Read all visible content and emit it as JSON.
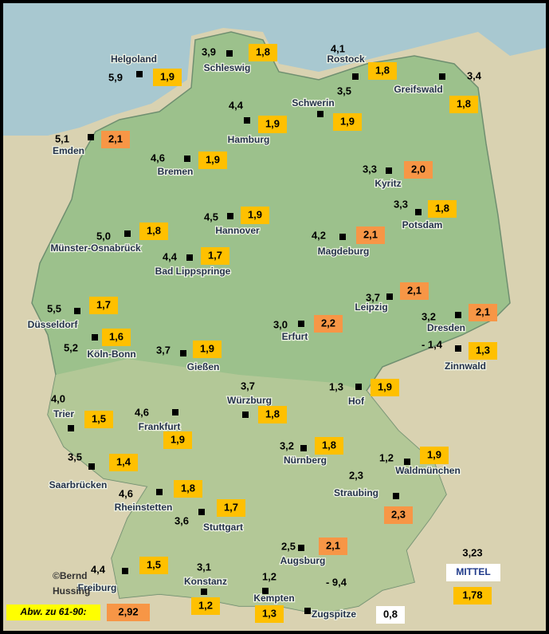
{
  "stations": [
    {
      "name": "Helgoland",
      "temp": "5,9",
      "deviation": "1,9",
      "color": "#ffc000"
    },
    {
      "name": "Schleswig",
      "temp": "3,9",
      "deviation": "1,8",
      "color": "#ffc000"
    },
    {
      "name": "Rostock",
      "temp": "4,1",
      "deviation": "1,8",
      "color": "#ffc000"
    },
    {
      "name": "Greifswald",
      "temp": "3,4",
      "deviation": "1,8",
      "color": "#ffc000"
    },
    {
      "name": "Schwerin",
      "temp": "3,5",
      "deviation": "1,9",
      "color": "#ffc000"
    },
    {
      "name": "Hamburg",
      "temp": "4,4",
      "deviation": "1,9",
      "color": "#ffc000"
    },
    {
      "name": "Emden",
      "temp": "5,1",
      "deviation": "2,1",
      "color": "#f79646"
    },
    {
      "name": "Bremen",
      "temp": "4,6",
      "deviation": "1,9",
      "color": "#ffc000"
    },
    {
      "name": "Kyritz",
      "temp": "3,3",
      "deviation": "2,0",
      "color": "#f79646"
    },
    {
      "name": "Potsdam",
      "temp": "3,3",
      "deviation": "1,8",
      "color": "#ffc000"
    },
    {
      "name": "Hannover",
      "temp": "4,5",
      "deviation": "1,9",
      "color": "#ffc000"
    },
    {
      "name": "Münster-Osnabrück",
      "temp": "5,0",
      "deviation": "1,8",
      "color": "#ffc000"
    },
    {
      "name": "Magdeburg",
      "temp": "4,2",
      "deviation": "2,1",
      "color": "#f79646"
    },
    {
      "name": "Bad Lippspringe",
      "temp": "4,4",
      "deviation": "1,7",
      "color": "#ffc000"
    },
    {
      "name": "Leipzig",
      "temp": "3,7",
      "deviation": "2,1",
      "color": "#f79646"
    },
    {
      "name": "Düsseldorf",
      "temp": "5,5",
      "deviation": "1,7",
      "color": "#ffc000"
    },
    {
      "name": "Dresden",
      "temp": "3,2",
      "deviation": "2,1",
      "color": "#f79646"
    },
    {
      "name": "Erfurt",
      "temp": "3,0",
      "deviation": "2,2",
      "color": "#f79646"
    },
    {
      "name": "Köln-Bonn",
      "temp": "5,2",
      "deviation": "1,6",
      "color": "#ffc000"
    },
    {
      "name": "Gießen",
      "temp": "3,7",
      "deviation": "1,9",
      "color": "#ffc000"
    },
    {
      "name": "Zinnwald",
      "temp": "- 1,4",
      "deviation": "1,3",
      "color": "#ffc000"
    },
    {
      "name": "Hof",
      "temp": "1,3",
      "deviation": "1,9",
      "color": "#ffc000"
    },
    {
      "name": "Würzburg",
      "temp": "3,7",
      "deviation": "1,8",
      "color": "#ffc000"
    },
    {
      "name": "Trier",
      "temp": "4,0",
      "deviation": "1,5",
      "color": "#ffc000"
    },
    {
      "name": "Frankfurt",
      "temp": "4,6",
      "deviation": "1,9",
      "color": "#ffc000"
    },
    {
      "name": "Nürnberg",
      "temp": "3,2",
      "deviation": "1,8",
      "color": "#ffc000"
    },
    {
      "name": "Waldmünchen",
      "temp": "1,2",
      "deviation": "1,9",
      "color": "#ffc000"
    },
    {
      "name": "Saarbrücken",
      "temp": "3,5",
      "deviation": "1,4",
      "color": "#ffc000"
    },
    {
      "name": "Straubing",
      "temp": "2,3",
      "deviation": "2,3",
      "color": "#f79646"
    },
    {
      "name": "Rheinstetten",
      "temp": "4,6",
      "deviation": "1,8",
      "color": "#ffc000"
    },
    {
      "name": "Stuttgart",
      "temp": "3,6",
      "deviation": "1,7",
      "color": "#ffc000"
    },
    {
      "name": "Augsburg",
      "temp": "2,5",
      "deviation": "2,1",
      "color": "#f79646"
    },
    {
      "name": "Freiburg",
      "temp": "4,4",
      "deviation": "1,5",
      "color": "#ffc000"
    },
    {
      "name": "Konstanz",
      "temp": "3,1",
      "deviation": "1,2",
      "color": "#ffc000"
    },
    {
      "name": "Kempten",
      "temp": "1,2",
      "deviation": "1,3",
      "color": "#ffc000"
    },
    {
      "name": "Zugspitze",
      "temp": "- 9,4",
      "deviation": "0,8",
      "color": "#ffffff"
    }
  ],
  "mean": {
    "label": "MITTEL",
    "temp": "3,23",
    "deviation": "1,78"
  },
  "legend": {
    "label": "Abw. zu 61-90:",
    "value": "2,92"
  },
  "credit": {
    "line1": "©Bernd",
    "line2": "Hussing"
  }
}
